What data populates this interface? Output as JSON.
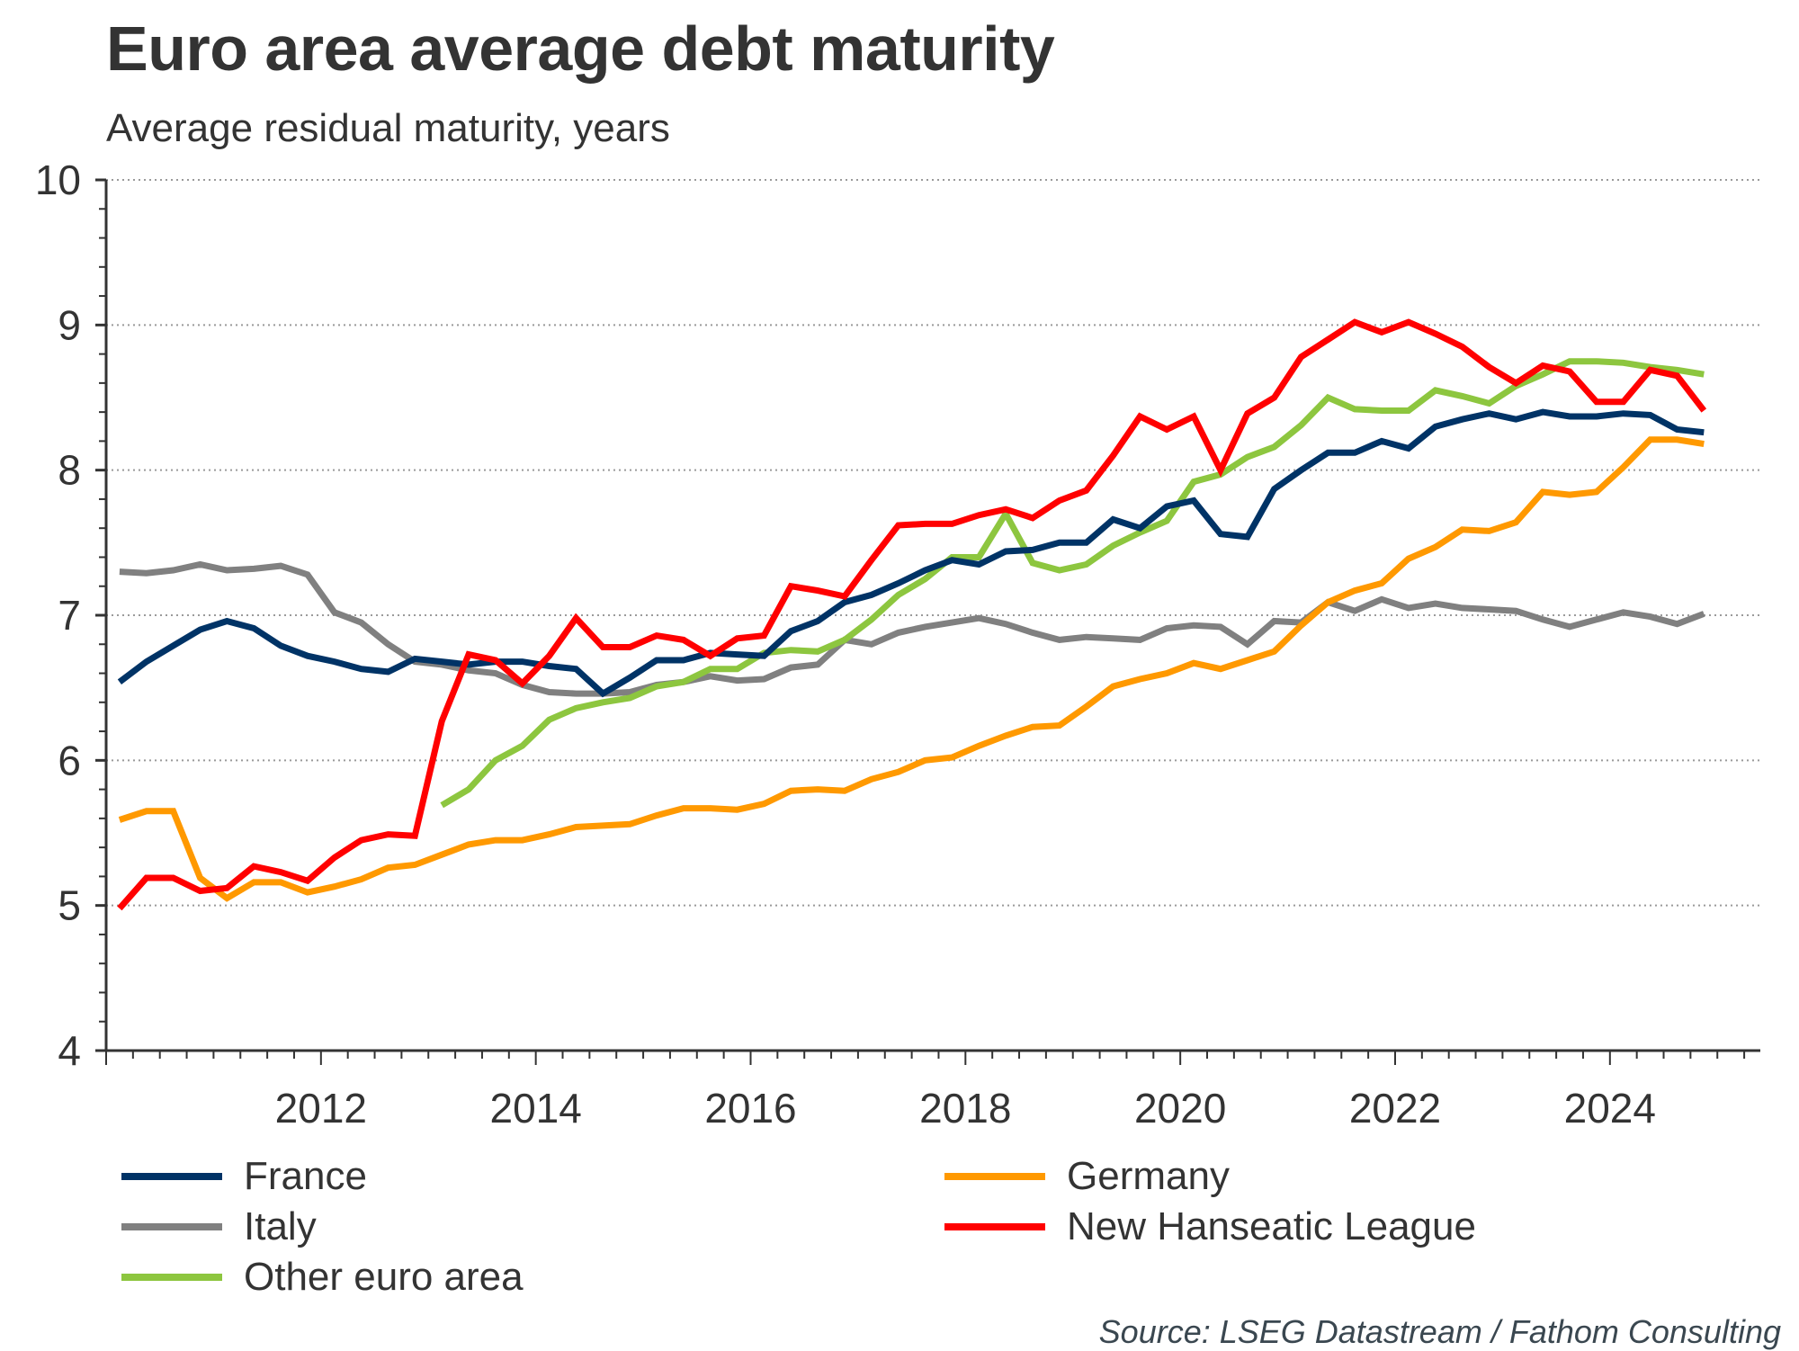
{
  "chart_data": {
    "type": "line",
    "title": "Euro area average debt maturity",
    "subtitle": "Average residual maturity, years",
    "xlabel": "",
    "ylabel": "Average residual maturity, years",
    "ylim": [
      4,
      10
    ],
    "yticks": [
      "4",
      "5",
      "6",
      "7",
      "8",
      "9",
      "10"
    ],
    "xlim": [
      2010.0,
      2025.4
    ],
    "xticks": [
      "2012",
      "2014",
      "2016",
      "2018",
      "2020",
      "2022",
      "2024"
    ],
    "grid": "horizontal dotted",
    "legend_position": "bottom",
    "frequency": "quarterly",
    "x_start": 2010.125,
    "x_step": 0.25,
    "series": [
      {
        "name": "France",
        "color": "#003366",
        "start_index": 0,
        "values": [
          6.54,
          6.68,
          6.79,
          6.9,
          6.96,
          6.91,
          6.79,
          6.72,
          6.68,
          6.63,
          6.61,
          6.7,
          6.68,
          6.66,
          6.68,
          6.68,
          6.65,
          6.63,
          6.46,
          6.57,
          6.69,
          6.69,
          6.74,
          6.73,
          6.72,
          6.89,
          6.96,
          7.09,
          7.14,
          7.22,
          7.31,
          7.38,
          7.35,
          7.44,
          7.45,
          7.5,
          7.5,
          7.66,
          7.6,
          7.75,
          7.79,
          7.56,
          7.54,
          7.87,
          8.0,
          8.12,
          8.12,
          8.2,
          8.15,
          8.3,
          8.35,
          8.39,
          8.35,
          8.4,
          8.37,
          8.37,
          8.39,
          8.38,
          8.28,
          8.26
        ]
      },
      {
        "name": "Italy",
        "color": "#808080",
        "start_index": 0,
        "values": [
          7.3,
          7.29,
          7.31,
          7.35,
          7.31,
          7.32,
          7.34,
          7.28,
          7.02,
          6.95,
          6.8,
          6.68,
          6.66,
          6.62,
          6.6,
          6.52,
          6.47,
          6.46,
          6.46,
          6.47,
          6.52,
          6.54,
          6.58,
          6.55,
          6.56,
          6.64,
          6.66,
          6.83,
          6.8,
          6.88,
          6.92,
          6.95,
          6.98,
          6.94,
          6.88,
          6.83,
          6.85,
          6.84,
          6.83,
          6.91,
          6.93,
          6.92,
          6.8,
          6.96,
          6.95,
          7.09,
          7.03,
          7.11,
          7.05,
          7.08,
          7.05,
          7.04,
          7.03,
          6.97,
          6.92,
          6.97,
          7.02,
          6.99,
          6.94,
          7.01
        ]
      },
      {
        "name": "Other euro area",
        "color": "#8DC63F",
        "start_index": 12,
        "values": [
          5.69,
          5.8,
          6.0,
          6.1,
          6.28,
          6.36,
          6.4,
          6.43,
          6.51,
          6.54,
          6.63,
          6.63,
          6.74,
          6.76,
          6.75,
          6.83,
          6.97,
          7.14,
          7.25,
          7.4,
          7.4,
          7.7,
          7.36,
          7.31,
          7.35,
          7.48,
          7.57,
          7.65,
          7.92,
          7.97,
          8.09,
          8.16,
          8.31,
          8.5,
          8.42,
          8.41,
          8.41,
          8.55,
          8.51,
          8.46,
          8.58,
          8.66,
          8.75,
          8.75,
          8.74,
          8.71,
          8.69,
          8.66
        ]
      },
      {
        "name": "Germany",
        "color": "#FF9900",
        "start_index": 0,
        "values": [
          5.59,
          5.65,
          5.65,
          5.19,
          5.05,
          5.16,
          5.16,
          5.09,
          5.13,
          5.18,
          5.26,
          5.28,
          5.35,
          5.42,
          5.45,
          5.45,
          5.49,
          5.54,
          5.55,
          5.56,
          5.62,
          5.67,
          5.67,
          5.66,
          5.7,
          5.79,
          5.8,
          5.79,
          5.87,
          5.92,
          6.0,
          6.02,
          6.1,
          6.17,
          6.23,
          6.24,
          6.37,
          6.51,
          6.56,
          6.6,
          6.67,
          6.63,
          6.69,
          6.75,
          6.93,
          7.09,
          7.17,
          7.22,
          7.39,
          7.47,
          7.59,
          7.58,
          7.64,
          7.85,
          7.83,
          7.85,
          8.02,
          8.21,
          8.21,
          8.18
        ]
      },
      {
        "name": "New Hanseatic League",
        "color": "#FF0000",
        "start_index": 0,
        "values": [
          4.98,
          5.19,
          5.19,
          5.1,
          5.12,
          5.27,
          5.23,
          5.17,
          5.33,
          5.45,
          5.49,
          5.48,
          6.27,
          6.73,
          6.69,
          6.53,
          6.72,
          6.98,
          6.78,
          6.78,
          6.86,
          6.83,
          6.72,
          6.84,
          6.86,
          7.2,
          7.17,
          7.13,
          7.38,
          7.62,
          7.63,
          7.63,
          7.69,
          7.73,
          7.67,
          7.79,
          7.86,
          8.1,
          8.37,
          8.28,
          8.37,
          8.0,
          8.39,
          8.5,
          8.78,
          8.9,
          9.02,
          8.95,
          9.02,
          8.94,
          8.85,
          8.71,
          8.6,
          8.72,
          8.68,
          8.47,
          8.47,
          8.69,
          8.65,
          8.41
        ]
      }
    ]
  },
  "legend": [
    {
      "label": "France",
      "color": "#003366"
    },
    {
      "label": "Germany",
      "color": "#FF9900"
    },
    {
      "label": "Italy",
      "color": "#808080"
    },
    {
      "label": "New Hanseatic League",
      "color": "#FF0000"
    },
    {
      "label": "Other euro area",
      "color": "#8DC63F"
    }
  ],
  "source": "Source: LSEG Datastream / Fathom Consulting"
}
